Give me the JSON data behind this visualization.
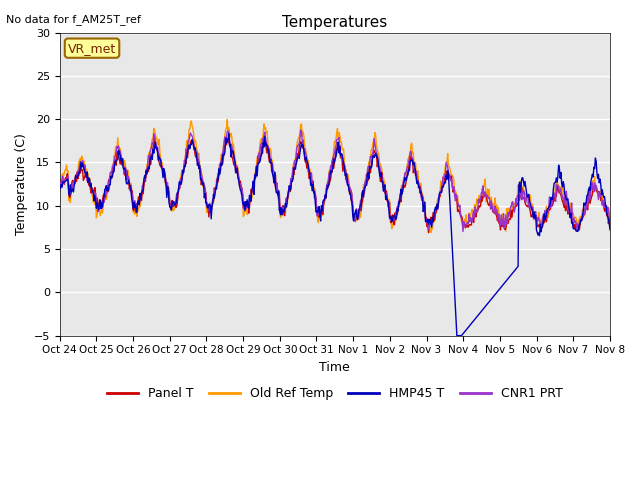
{
  "title": "Temperatures",
  "ylabel": "Temperature (C)",
  "xlabel": "Time",
  "note": "No data for f_AM25T_ref",
  "station_label": "VR_met",
  "ylim": [
    -5,
    30
  ],
  "yticks": [
    -5,
    0,
    5,
    10,
    15,
    20,
    25,
    30
  ],
  "xtick_labels": [
    "Oct 24",
    "Oct 25",
    "Oct 26",
    "Oct 27",
    "Oct 28",
    "Oct 29",
    "Oct 30",
    "Oct 31",
    "Nov 1",
    "Nov 2",
    "Nov 3",
    "Nov 4",
    "Nov 5",
    "Nov 6",
    "Nov 7",
    "Nov 8"
  ],
  "background_color": "#e8e8e8",
  "plot_bg_color": "#d8d8d8",
  "grid_color": "#ffffff",
  "legend_entries": [
    "Panel T",
    "Old Ref Temp",
    "HMP45 T",
    "CNR1 PRT"
  ],
  "legend_colors": [
    "#cc0000",
    "#ff9900",
    "#0000bb",
    "#9933cc"
  ],
  "line_width": 1.0,
  "fig_width": 6.4,
  "fig_height": 4.8,
  "dpi": 100
}
